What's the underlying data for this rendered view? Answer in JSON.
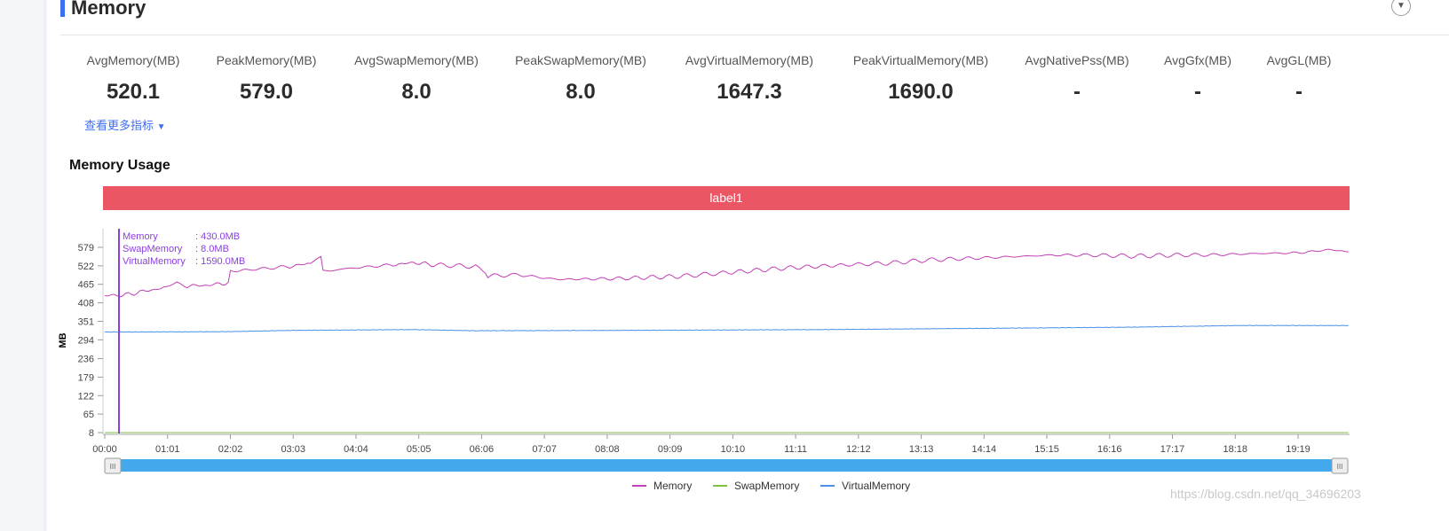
{
  "section": {
    "title": "Memory",
    "more_link": "查看更多指标"
  },
  "metrics": [
    {
      "label": "AvgMemory(MB)",
      "value": "520.1"
    },
    {
      "label": "PeakMemory(MB)",
      "value": "579.0"
    },
    {
      "label": "AvgSwapMemory(MB)",
      "value": "8.0"
    },
    {
      "label": "PeakSwapMemory(MB)",
      "value": "8.0"
    },
    {
      "label": "AvgVirtualMemory(MB)",
      "value": "1647.3"
    },
    {
      "label": "PeakVirtualMemory(MB)",
      "value": "1690.0"
    },
    {
      "label": "AvgNativePss(MB)",
      "value": "-"
    },
    {
      "label": "AvgGfx(MB)",
      "value": "-"
    },
    {
      "label": "AvgGL(MB)",
      "value": "-"
    }
  ],
  "watermark": "https://blog.csdn.net/qq_34696203",
  "chart_data": {
    "type": "line",
    "title": "Memory Usage",
    "band_label": "label1",
    "ylabel": "MB",
    "ylim": [
      8,
      579
    ],
    "yticks": [
      "8",
      "65",
      "122",
      "179",
      "236",
      "294",
      "351",
      "408",
      "465",
      "522",
      "579"
    ],
    "xticks": [
      "00:00",
      "01:01",
      "02:02",
      "03:03",
      "04:04",
      "05:05",
      "06:06",
      "07:07",
      "08:08",
      "09:09",
      "10:10",
      "11:11",
      "12:12",
      "13:13",
      "14:14",
      "15:15",
      "16:16",
      "17:17",
      "18:18",
      "19:19"
    ],
    "xlim_seconds": [
      0,
      1208
    ],
    "tooltip": {
      "rows": [
        {
          "name": "Memory",
          "value": ": 430.0MB"
        },
        {
          "name": "SwapMemory",
          "value": ": 8.0MB"
        },
        {
          "name": "VirtualMemory",
          "value": ": 1590.0MB"
        }
      ]
    },
    "series": [
      {
        "name": "Memory",
        "color": "#c23fb5",
        "points": [
          [
            0,
            430
          ],
          [
            20,
            432
          ],
          [
            40,
            445
          ],
          [
            60,
            455
          ],
          [
            70,
            472
          ],
          [
            80,
            460
          ],
          [
            100,
            462
          ],
          [
            120,
            470
          ],
          [
            122,
            505
          ],
          [
            140,
            510
          ],
          [
            180,
            520
          ],
          [
            200,
            530
          ],
          [
            210,
            552
          ],
          [
            212,
            505
          ],
          [
            240,
            515
          ],
          [
            280,
            525
          ],
          [
            300,
            532
          ],
          [
            320,
            525
          ],
          [
            360,
            520
          ],
          [
            370,
            498
          ],
          [
            372,
            490
          ],
          [
            400,
            495
          ],
          [
            440,
            480
          ],
          [
            500,
            483
          ],
          [
            560,
            490
          ],
          [
            600,
            500
          ],
          [
            660,
            515
          ],
          [
            720,
            525
          ],
          [
            760,
            530
          ],
          [
            800,
            540
          ],
          [
            840,
            545
          ],
          [
            880,
            550
          ],
          [
            920,
            555
          ],
          [
            960,
            555
          ],
          [
            1000,
            552
          ],
          [
            1040,
            555
          ],
          [
            1080,
            556
          ],
          [
            1120,
            560
          ],
          [
            1160,
            562
          ],
          [
            1190,
            572
          ],
          [
            1208,
            565
          ]
        ]
      },
      {
        "name": "SwapMemory",
        "color": "#7cc242",
        "points": [
          [
            0,
            8
          ],
          [
            1208,
            8
          ]
        ]
      },
      {
        "name": "VirtualMemory",
        "color": "#4a90e8",
        "points": [
          [
            0,
            1590
          ],
          [
            120,
            1592
          ],
          [
            180,
            1600
          ],
          [
            300,
            1605
          ],
          [
            360,
            1598
          ],
          [
            500,
            1600
          ],
          [
            700,
            1605
          ],
          [
            900,
            1615
          ],
          [
            1000,
            1620
          ],
          [
            1100,
            1630
          ],
          [
            1208,
            1630
          ]
        ]
      }
    ]
  }
}
